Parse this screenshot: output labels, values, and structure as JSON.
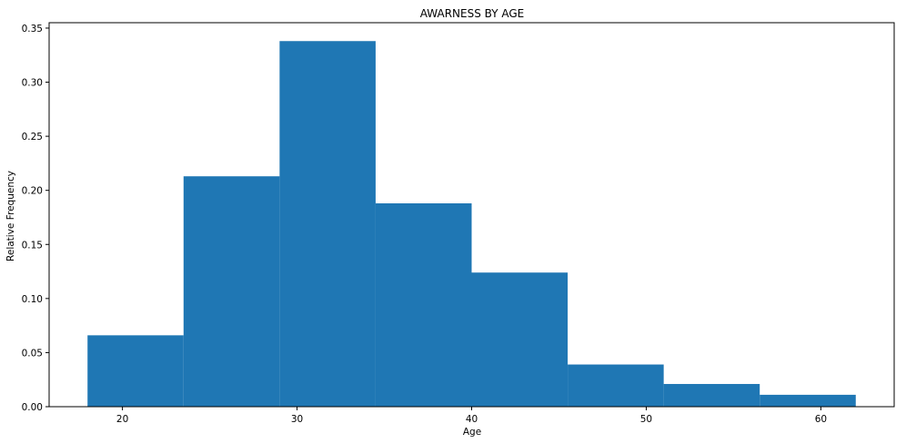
{
  "chart_data": {
    "type": "bar",
    "subtype": "histogram",
    "title": "AWARNESS BY AGE",
    "xlabel": "Age",
    "ylabel": "Relative Frequency",
    "bins": [
      {
        "start": 18.0,
        "end": 23.5,
        "value": 0.066
      },
      {
        "start": 23.5,
        "end": 29.0,
        "value": 0.213
      },
      {
        "start": 29.0,
        "end": 34.5,
        "value": 0.338
      },
      {
        "start": 34.5,
        "end": 40.0,
        "value": 0.188
      },
      {
        "start": 40.0,
        "end": 45.5,
        "value": 0.124
      },
      {
        "start": 45.5,
        "end": 51.0,
        "value": 0.039
      },
      {
        "start": 51.0,
        "end": 56.5,
        "value": 0.021
      },
      {
        "start": 56.5,
        "end": 62.0,
        "value": 0.011
      }
    ],
    "xlim": [
      15.8,
      64.2
    ],
    "ylim": [
      0,
      0.355
    ],
    "xticks": [
      20,
      30,
      40,
      50,
      60
    ],
    "xtick_labels": [
      "20",
      "30",
      "40",
      "50",
      "60"
    ],
    "yticks": [
      0.0,
      0.05,
      0.1,
      0.15,
      0.2,
      0.25,
      0.3,
      0.35
    ],
    "ytick_labels": [
      "0.00",
      "0.05",
      "0.10",
      "0.15",
      "0.20",
      "0.25",
      "0.30",
      "0.35"
    ],
    "grid": false,
    "bar_color": "#1f77b4"
  }
}
